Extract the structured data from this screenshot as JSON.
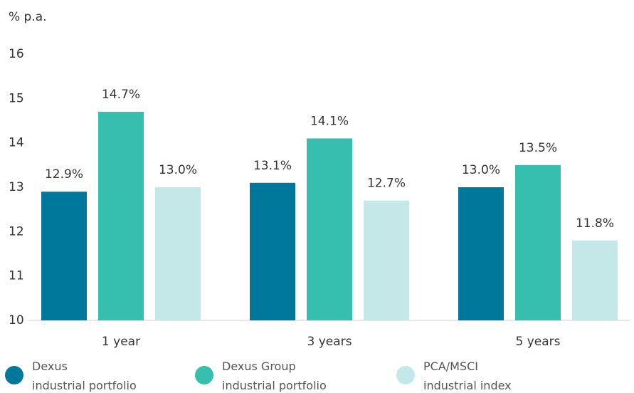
{
  "chart_data": {
    "type": "bar",
    "y_axis_label": "% p.a.",
    "categories": [
      "1 year",
      "3 years",
      "5 years"
    ],
    "series": [
      {
        "name": "Dexus industrial portfolio",
        "color": "#00789c",
        "values": [
          12.9,
          13.1,
          13.0
        ],
        "value_labels": [
          "12.9%",
          "13.1%",
          "13.0%"
        ]
      },
      {
        "name": "Dexus Group industrial portfolio",
        "color": "#36bfae",
        "values": [
          14.7,
          14.1,
          13.5
        ],
        "value_labels": [
          "14.7%",
          "14.1%",
          "13.5%"
        ]
      },
      {
        "name": "PCA/MSCI industrial index",
        "color": "#c4e8e8",
        "values": [
          13.0,
          12.7,
          11.8
        ],
        "value_labels": [
          "13.0%",
          "12.7%",
          "11.8%"
        ]
      }
    ],
    "ylim": [
      10,
      16
    ],
    "yticks": [
      10,
      11,
      12,
      13,
      14,
      15,
      16
    ],
    "grid": false,
    "legend": "bottom"
  }
}
